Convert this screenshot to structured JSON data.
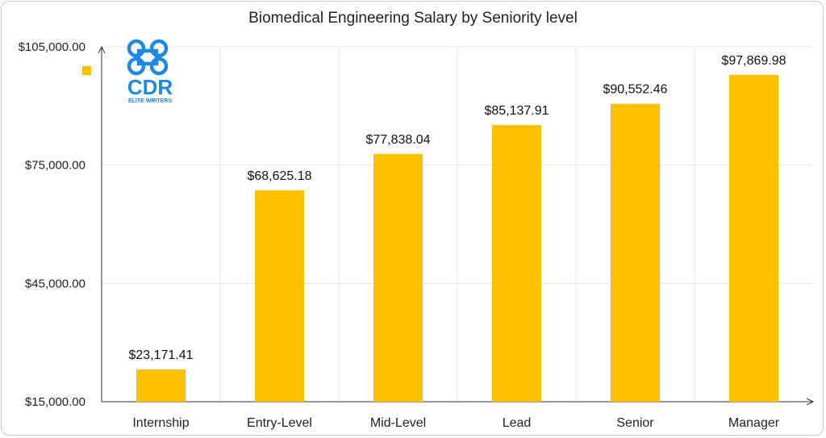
{
  "colors": {
    "bar": "#FFC000",
    "grid": "#e4e4e4",
    "axis": "#333333",
    "logo": "#1e88e5"
  },
  "logo": {
    "icon": "cdr-knot-logo-icon",
    "text_main": "CDR",
    "text_sub": "ELITE WRITERS"
  },
  "chart_data": {
    "type": "bar",
    "title": "Biomedical Engineering Salary by Seniority level",
    "categories": [
      "Internship",
      "Entry-Level",
      "Mid-Level",
      "Lead",
      "Senior",
      "Manager"
    ],
    "values": [
      23171.41,
      68625.18,
      77838.04,
      85137.91,
      90552.46,
      97869.98
    ],
    "value_labels": [
      "$23,171.41",
      "$68,625.18",
      "$77,838.04",
      "$85,137.91",
      "$90,552.46",
      "$97,869.98"
    ],
    "ylim": [
      15000,
      105000
    ],
    "yticks": [
      15000,
      45000,
      75000,
      105000
    ],
    "ytick_labels": [
      "$15,000.00",
      "$45,000.00",
      "$75,000.00",
      "$105,000.00"
    ],
    "xlabel": "",
    "ylabel": "",
    "grid": true,
    "legend": "left"
  }
}
